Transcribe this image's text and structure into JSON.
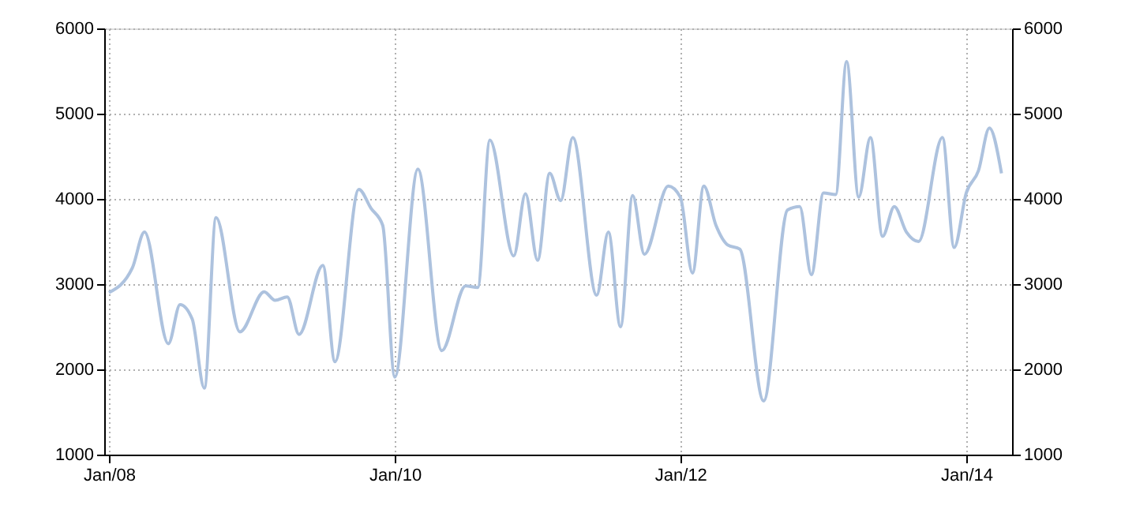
{
  "chart_data": {
    "type": "line",
    "x": [
      "2008-01",
      "2008-03",
      "2008-04",
      "2008-06",
      "2008-07",
      "2008-08",
      "2008-09",
      "2008-10",
      "2008-12",
      "2009-02",
      "2009-03",
      "2009-04",
      "2009-05",
      "2009-07",
      "2009-08",
      "2009-10",
      "2009-11",
      "2009-12",
      "2010-01",
      "2010-03",
      "2010-05",
      "2010-07",
      "2010-08",
      "2010-09",
      "2010-11",
      "2010-12",
      "2011-01",
      "2011-02",
      "2011-03",
      "2011-04",
      "2011-06",
      "2011-07",
      "2011-08",
      "2011-09",
      "2011-10",
      "2011-12",
      "2012-01",
      "2012-02",
      "2012-03",
      "2012-04",
      "2012-05",
      "2012-06",
      "2012-08",
      "2012-10",
      "2012-11",
      "2012-12",
      "2013-01",
      "2013-02",
      "2013-03",
      "2013-04",
      "2013-05",
      "2013-06",
      "2013-07",
      "2013-08",
      "2013-09",
      "2013-11",
      "2013-12",
      "2014-01",
      "2014-02",
      "2014-03",
      "2014-04"
    ],
    "series": [
      {
        "color": "#adc2de",
        "values": [
          2900,
          3190,
          3610,
          2300,
          2760,
          2590,
          1780,
          3780,
          2440,
          2910,
          2810,
          2850,
          2410,
          3220,
          2090,
          4110,
          3890,
          3690,
          1910,
          4350,
          2220,
          2980,
          2960,
          4690,
          3330,
          4060,
          3280,
          4300,
          3980,
          4720,
          2870,
          3610,
          2500,
          4040,
          3350,
          4150,
          4020,
          3130,
          4150,
          3690,
          3460,
          3410,
          1630,
          3870,
          3910,
          3110,
          4070,
          4050,
          5610,
          4020,
          4720,
          3560,
          3910,
          3610,
          3500,
          4720,
          3430,
          4070,
          4330,
          4830,
          4300
        ]
      }
    ],
    "xlim": [
      "2007-12-20",
      "2014-04-28"
    ],
    "xticks": [
      {
        "value": "2008-01",
        "label": "Jan/08"
      },
      {
        "value": "2010-01",
        "label": "Jan/10"
      },
      {
        "value": "2012-01",
        "label": "Jan/12"
      },
      {
        "value": "2014-01",
        "label": "Jan/14"
      }
    ],
    "ylim": [
      1000,
      6000
    ],
    "yticks": [
      1000,
      2000,
      3000,
      4000,
      5000,
      6000
    ],
    "y2lim": [
      1000,
      6000
    ],
    "y2ticks": [
      1000,
      2000,
      3000,
      4000,
      5000,
      6000
    ],
    "grid": true,
    "line_style": "solid",
    "marker": "none"
  }
}
